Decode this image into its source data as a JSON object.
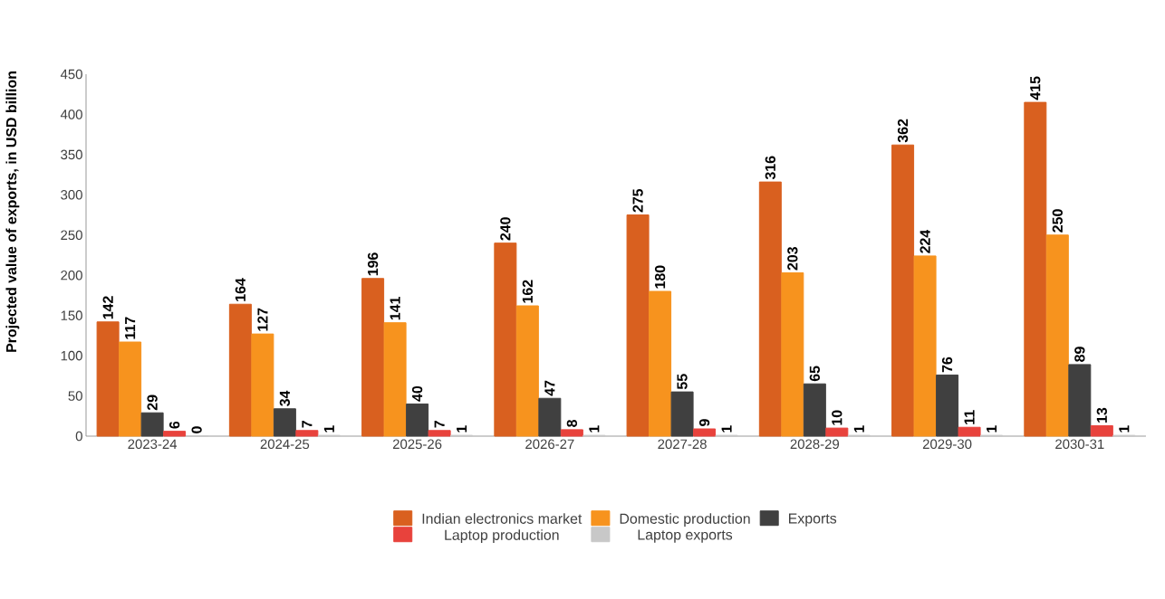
{
  "chart_data": {
    "type": "bar",
    "ylabel": "Projected value of exports, in USD billion",
    "categories": [
      "2023-24",
      "2024-25",
      "2025-26",
      "2026-27",
      "2027-28",
      "2028-29",
      "2029-30",
      "2030-31"
    ],
    "series": [
      {
        "name": "Indian electronics market",
        "color": "#d9601f",
        "values": [
          142,
          164,
          196,
          240,
          275,
          316,
          362,
          415
        ]
      },
      {
        "name": "Domestic production",
        "color": "#f7931e",
        "values": [
          117,
          127,
          141,
          162,
          180,
          203,
          224,
          250
        ]
      },
      {
        "name": "Exports",
        "color": "#404040",
        "values": [
          29,
          34,
          40,
          47,
          55,
          65,
          76,
          89
        ]
      },
      {
        "name": "Laptop production",
        "color": "#e8423c",
        "values": [
          6,
          7,
          7,
          8,
          9,
          10,
          11,
          13
        ]
      },
      {
        "name": "Laptop exports",
        "color": "#c8c8c8",
        "values": [
          0,
          1,
          1,
          1,
          1,
          1,
          1,
          1
        ]
      }
    ],
    "ylim": [
      0,
      450
    ],
    "yticks": [
      0,
      50,
      100,
      150,
      200,
      250,
      300,
      350,
      400,
      450
    ],
    "data_labels": true,
    "grid": false,
    "legend": "bottom"
  }
}
